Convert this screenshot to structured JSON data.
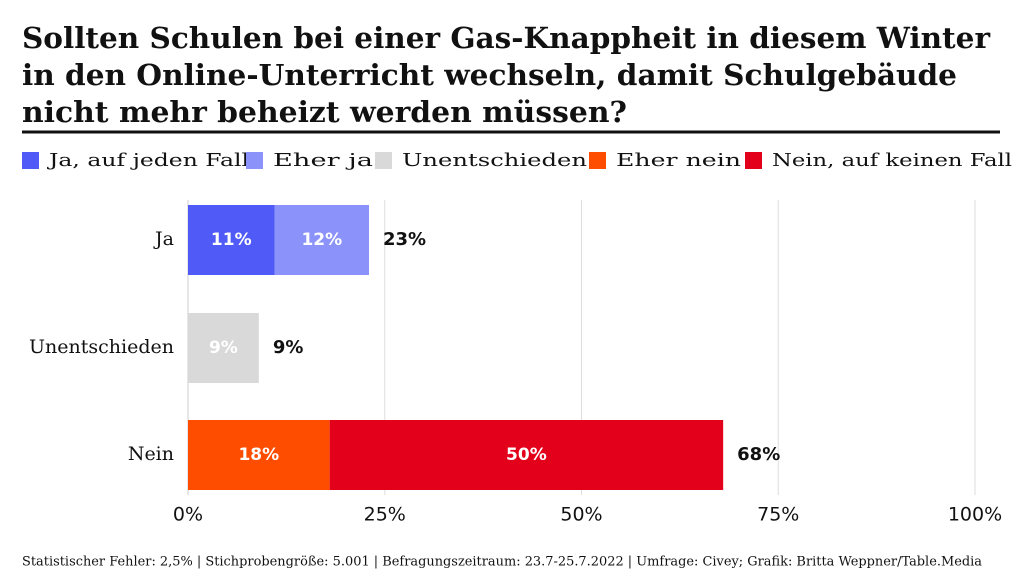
{
  "chart_data": {
    "type": "stacked-barh",
    "title": [
      "Sollten Schulen bei einer Gas-Knappheit in diesem Winter",
      "in den Online-Unterricht wechseln, damit Schulgebäude",
      "nicht mehr beheizt werden müssen?"
    ],
    "categories": [
      "Ja",
      "Unentschieden",
      "Nein"
    ],
    "series": [
      {
        "name": "Ja, auf jeden Fall",
        "color": "#4f5af7",
        "values": [
          11,
          null,
          null
        ],
        "value_labels": [
          "11%",
          null,
          null
        ]
      },
      {
        "name": "Eher ja",
        "color": "#8b93fa",
        "values": [
          12,
          null,
          null
        ],
        "value_labels": [
          "12%",
          null,
          null
        ]
      },
      {
        "name": "Unentschieden",
        "color": "#d9d9d9",
        "values": [
          null,
          9,
          null
        ],
        "value_labels": [
          null,
          "9%",
          null
        ]
      },
      {
        "name": "Eher nein",
        "color": "#ff4d00",
        "values": [
          null,
          null,
          18
        ],
        "value_labels": [
          null,
          null,
          "18%"
        ]
      },
      {
        "name": "Nein, auf keinen Fall",
        "color": "#e2001a",
        "values": [
          null,
          null,
          50
        ],
        "value_labels": [
          null,
          null,
          "50%"
        ]
      }
    ],
    "totals": {
      "values": [
        23,
        9,
        68
      ],
      "value_labels": [
        "23%",
        "9%",
        "68%"
      ]
    },
    "xlim": [
      0,
      100
    ],
    "xticks": [
      {
        "value": 0,
        "label": "0%"
      },
      {
        "value": 25,
        "label": "25%"
      },
      {
        "value": 50,
        "label": "50%"
      },
      {
        "value": 75,
        "label": "75%"
      },
      {
        "value": 100,
        "label": "100%"
      }
    ],
    "grid": true,
    "legend": "top",
    "note": "Statistischer Fehler: 2,5% | Stichprobengröße: 5.001 | Befragungszeitraum: 23.7-25.7.2022 | Umfrage: Civey; Grafik: Britta Weppner/Table.Media"
  }
}
